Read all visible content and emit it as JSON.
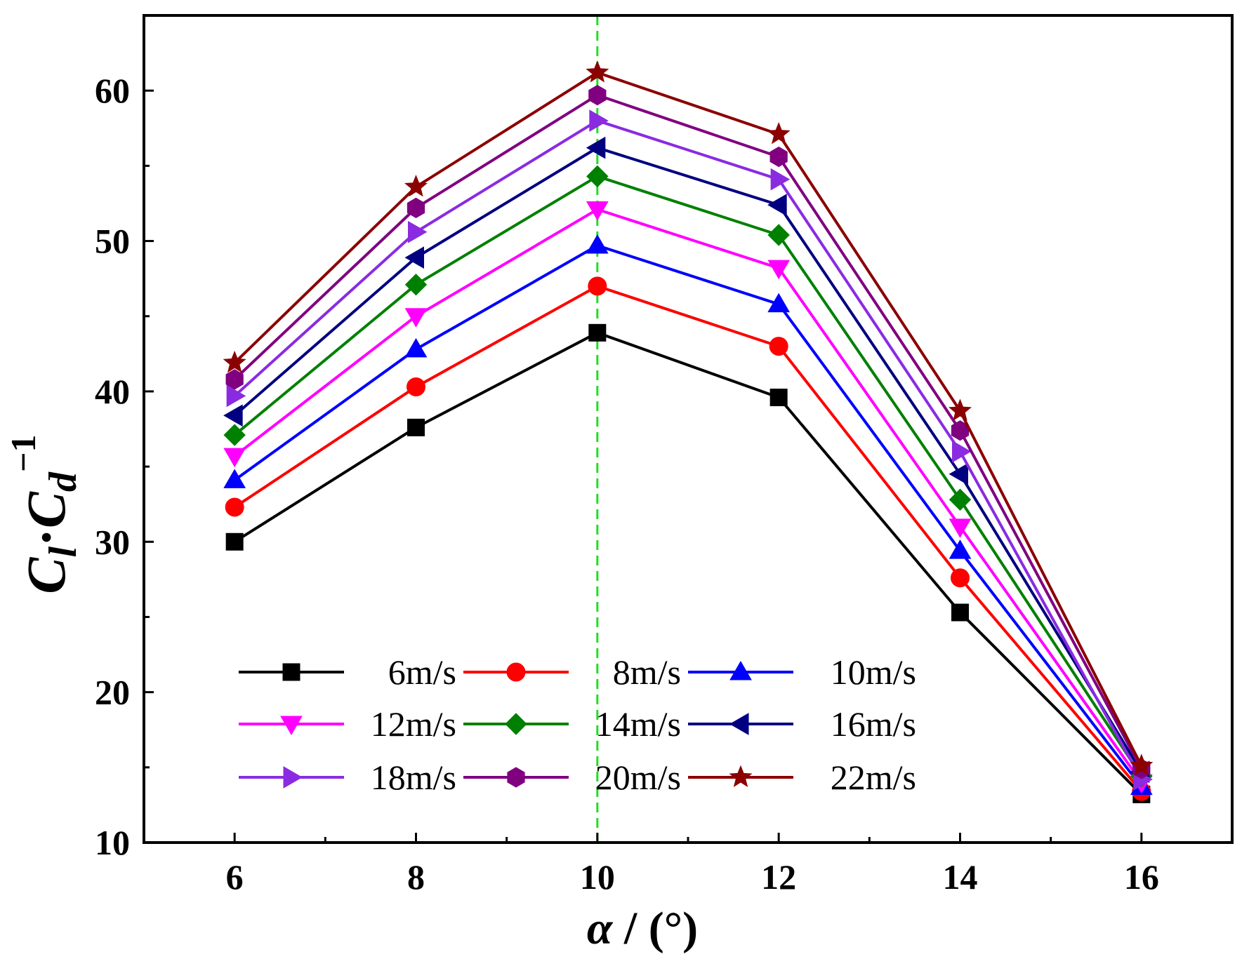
{
  "chart_data": {
    "type": "line",
    "title": "",
    "xlabel": {
      "symbol": "α",
      "rest": " / (°)"
    },
    "ylabel": {
      "base1": "C",
      "sub1": "l",
      "dot": "·",
      "base2": "C",
      "sub2": "d",
      "sup2": "−1"
    },
    "x": [
      6,
      8,
      10,
      12,
      14,
      16
    ],
    "xlim": [
      5,
      17
    ],
    "ylim": [
      10,
      65
    ],
    "xticks": [
      6,
      8,
      10,
      12,
      14,
      16
    ],
    "yticks": [
      10,
      20,
      30,
      40,
      50,
      60
    ],
    "reference_line": {
      "x": 10,
      "color": "#22dd22",
      "style": "dashed"
    },
    "legend_position": "lower-left",
    "series": [
      {
        "name": "6m/s",
        "color": "#000000",
        "marker": "square",
        "values": [
          30.0,
          37.6,
          43.9,
          39.6,
          25.3,
          13.2
        ]
      },
      {
        "name": "8m/s",
        "color": "#ff0000",
        "marker": "circle",
        "values": [
          32.3,
          40.3,
          47.0,
          43.0,
          27.6,
          13.4
        ]
      },
      {
        "name": "10m/s",
        "color": "#0000ff",
        "marker": "triangle-up",
        "values": [
          34.1,
          42.8,
          49.7,
          45.8,
          29.4,
          13.7
        ]
      },
      {
        "name": "12m/s",
        "color": "#ff00ff",
        "marker": "triangle-down",
        "values": [
          35.7,
          45.0,
          52.1,
          48.2,
          31.0,
          14.0
        ]
      },
      {
        "name": "14m/s",
        "color": "#008000",
        "marker": "diamond",
        "values": [
          37.1,
          47.1,
          54.3,
          50.4,
          32.8,
          14.4
        ]
      },
      {
        "name": "16m/s",
        "color": "#000080",
        "marker": "triangle-left",
        "values": [
          38.4,
          48.9,
          56.2,
          52.4,
          34.5,
          14.7
        ]
      },
      {
        "name": "18m/s",
        "color": "#8a2be2",
        "marker": "triangle-right",
        "values": [
          39.7,
          50.6,
          58.0,
          54.1,
          36.0,
          14.2
        ]
      },
      {
        "name": "20m/s",
        "color": "#800080",
        "marker": "hexagon",
        "values": [
          40.8,
          52.2,
          59.7,
          55.6,
          37.4,
          14.9
        ]
      },
      {
        "name": "22m/s",
        "color": "#8b0000",
        "marker": "star",
        "values": [
          41.9,
          53.6,
          61.2,
          57.1,
          38.7,
          15.1
        ]
      }
    ]
  }
}
